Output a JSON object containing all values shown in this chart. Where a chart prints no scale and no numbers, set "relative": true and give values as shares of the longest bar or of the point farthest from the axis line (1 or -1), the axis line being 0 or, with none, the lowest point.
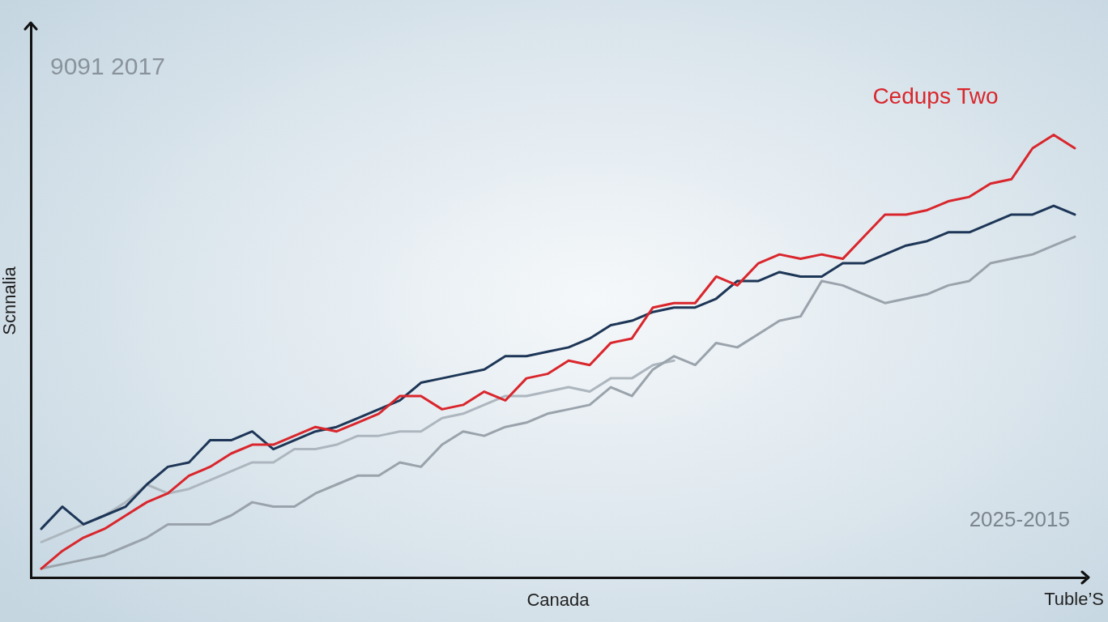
{
  "chart_data": {
    "type": "line",
    "relative": true,
    "xlabel": "Canada",
    "ylabel": "Scnnalia",
    "annotations": [
      "9091 2017",
      "2025-2015",
      "Tuble’S"
    ],
    "categories": [
      null,
      null,
      null,
      null,
      null,
      null,
      null,
      null,
      null,
      null,
      null,
      null,
      null,
      null,
      null,
      null,
      null,
      null,
      null,
      null,
      null,
      null,
      null,
      null,
      null,
      null,
      null,
      null,
      null,
      null,
      null,
      null,
      null,
      null,
      null,
      null,
      null,
      null,
      null,
      null,
      null,
      null,
      null,
      null,
      null,
      null,
      null,
      null,
      null,
      null
    ],
    "series": [
      {
        "name": "Cedups Two",
        "color": "#d9262c",
        "values": [
          0.02,
          0.06,
          0.09,
          0.11,
          0.14,
          0.17,
          0.19,
          0.23,
          0.25,
          0.28,
          0.3,
          0.3,
          0.32,
          0.34,
          0.33,
          0.35,
          0.37,
          0.41,
          0.41,
          0.38,
          0.39,
          0.42,
          0.4,
          0.45,
          0.46,
          0.49,
          0.48,
          0.53,
          0.54,
          0.61,
          0.62,
          0.62,
          0.68,
          0.66,
          0.71,
          0.73,
          0.72,
          0.73,
          0.72,
          0.77,
          0.82,
          0.82,
          0.83,
          0.85,
          0.86,
          0.89,
          0.9,
          0.97,
          1,
          0.97
        ]
      },
      {
        "color": "#1d3657",
        "values": [
          0.11,
          0.16,
          0.12,
          0.14,
          0.16,
          0.21,
          0.25,
          0.26,
          0.31,
          0.31,
          0.33,
          0.29,
          0.31,
          0.33,
          0.34,
          0.36,
          0.38,
          0.4,
          0.44,
          0.45,
          0.46,
          0.47,
          0.5,
          0.5,
          0.51,
          0.52,
          0.54,
          0.57,
          0.58,
          0.6,
          0.61,
          0.61,
          0.63,
          0.67,
          0.67,
          0.69,
          0.68,
          0.68,
          0.71,
          0.71,
          0.73,
          0.75,
          0.76,
          0.78,
          0.78,
          0.8,
          0.82,
          0.82,
          0.84,
          0.82
        ]
      },
      {
        "color": "#9aa3ab",
        "values": [
          0.02,
          0.03,
          0.04,
          0.05,
          0.07,
          0.09,
          0.12,
          0.12,
          0.12,
          0.14,
          0.17,
          0.16,
          0.16,
          0.19,
          0.21,
          0.23,
          0.23,
          0.26,
          0.25,
          0.3,
          0.33,
          0.32,
          0.34,
          0.35,
          0.37,
          0.38,
          0.39,
          0.43,
          0.41,
          0.47,
          0.5,
          0.48,
          0.53,
          0.52,
          0.55,
          0.58,
          0.59,
          0.67,
          0.66,
          0.64,
          0.62,
          0.63,
          0.64,
          0.66,
          0.67,
          0.71,
          0.72,
          0.73,
          0.75,
          0.77
        ]
      },
      {
        "color": "#adb6be",
        "values": [
          0.08,
          0.1,
          0.12,
          0.14,
          0.17,
          0.21,
          0.19,
          0.2,
          0.22,
          0.24,
          0.26,
          0.26,
          0.29,
          0.29,
          0.3,
          0.32,
          0.32,
          0.33,
          0.33,
          0.36,
          0.37,
          0.39,
          0.41,
          0.41,
          0.42,
          0.43,
          0.42,
          0.45,
          0.45,
          0.48,
          0.49,
          null,
          null,
          null,
          null,
          null,
          null,
          null,
          null,
          null,
          null,
          null,
          null,
          null,
          null,
          null,
          null,
          null,
          null,
          null
        ]
      }
    ]
  }
}
